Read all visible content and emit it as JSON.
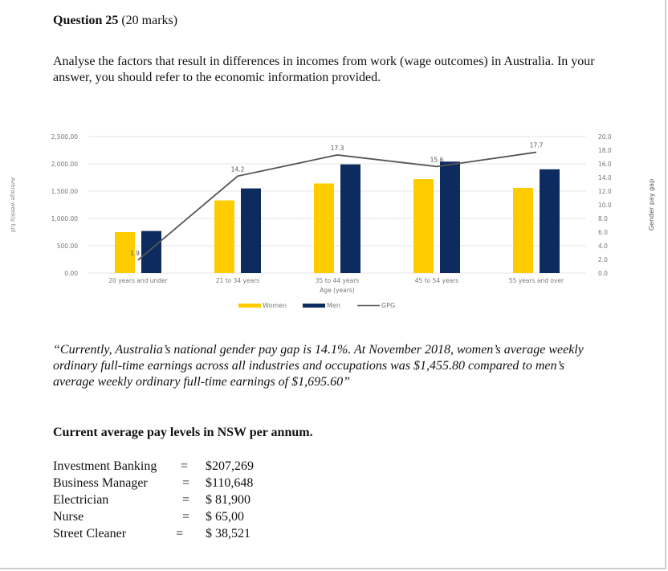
{
  "question": {
    "title": "Question 25",
    "marks": "(20 marks)",
    "instruction": "Analyse the factors that result in differences in incomes from work (wage outcomes) in Australia. In your answer, you should refer to the economic information provided."
  },
  "chart_data": {
    "type": "bar",
    "categories": [
      "20 years and under",
      "21 to 34 years",
      "35 to 44 years",
      "45 to 54 years",
      "55 years and over"
    ],
    "series": [
      {
        "name": "Women",
        "type": "bar",
        "axis": "left",
        "color": "#FFCC00",
        "values": [
          750,
          1330,
          1640,
          1720,
          1560
        ]
      },
      {
        "name": "Men",
        "type": "bar",
        "axis": "left",
        "color": "#0D2B5E",
        "values": [
          770,
          1550,
          1990,
          2040,
          1900
        ]
      },
      {
        "name": "GPG",
        "type": "line",
        "axis": "right",
        "color": "#555555",
        "values": [
          1.9,
          14.2,
          17.3,
          15.6,
          17.7
        ],
        "labels": [
          "1.9",
          "14.2",
          "17.3",
          "15.6",
          "17.7"
        ]
      }
    ],
    "xlabel": "Age (years)",
    "ylabel": "Average weekly full",
    "y2label": "Gender pay gap",
    "ylim": [
      0,
      2500
    ],
    "y2lim": [
      0,
      20
    ],
    "yticks": [
      "0.00",
      "500.00",
      "1,000.00",
      "1,500.00",
      "2,000.00",
      "2,500.00"
    ],
    "y2ticks": [
      "0.0",
      "2.0",
      "4.0",
      "6.0",
      "8.0",
      "10.0",
      "12.0",
      "14.0",
      "16.0",
      "18.0",
      "20.0"
    ],
    "grid": true,
    "legend": "bottom"
  },
  "quote": "“Currently, Australia’s national gender pay gap is 14.1%. At November 2018, women’s average weekly ordinary full-time earnings across all industries and occupations was $1,455.80 compared to men’s average weekly ordinary full-time earnings of $1,695.60”",
  "pay_levels": {
    "heading": "Current average pay levels in NSW per annum.",
    "items": [
      {
        "occupation": "Investment Banking",
        "amount": "$207,269"
      },
      {
        "occupation": "Business Manager",
        "amount": "$110,648"
      },
      {
        "occupation": "Electrician",
        "amount": "$ 81,900"
      },
      {
        "occupation": "Nurse",
        "amount": "$ 65,00"
      },
      {
        "occupation": "Street Cleaner",
        "amount": "$ 38,521"
      }
    ]
  }
}
